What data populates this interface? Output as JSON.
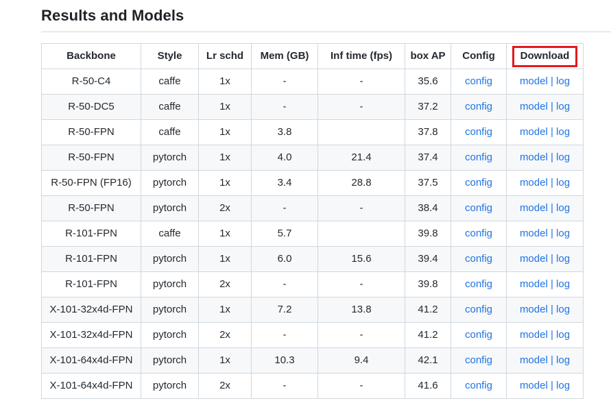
{
  "section": {
    "title": "Results and Models"
  },
  "annotation": {
    "column": "Download",
    "shape": "red-rectangle"
  },
  "colors": {
    "link": "#2074e2",
    "highlight": "#e0191f",
    "stripe": "#f6f8fa",
    "border": "#d0d7de"
  },
  "table": {
    "columns": [
      "Backbone",
      "Style",
      "Lr schd",
      "Mem (GB)",
      "Inf time (fps)",
      "box AP",
      "Config",
      "Download"
    ],
    "links": {
      "config": "config",
      "model": "model",
      "log": "log",
      "separator": "|"
    },
    "rows": [
      {
        "backbone": "R-50-C4",
        "style": "caffe",
        "lr_schd": "1x",
        "mem": "-",
        "inf_time": "-",
        "box_ap": "35.6"
      },
      {
        "backbone": "R-50-DC5",
        "style": "caffe",
        "lr_schd": "1x",
        "mem": "-",
        "inf_time": "-",
        "box_ap": "37.2"
      },
      {
        "backbone": "R-50-FPN",
        "style": "caffe",
        "lr_schd": "1x",
        "mem": "3.8",
        "inf_time": "",
        "box_ap": "37.8"
      },
      {
        "backbone": "R-50-FPN",
        "style": "pytorch",
        "lr_schd": "1x",
        "mem": "4.0",
        "inf_time": "21.4",
        "box_ap": "37.4"
      },
      {
        "backbone": "R-50-FPN (FP16)",
        "style": "pytorch",
        "lr_schd": "1x",
        "mem": "3.4",
        "inf_time": "28.8",
        "box_ap": "37.5"
      },
      {
        "backbone": "R-50-FPN",
        "style": "pytorch",
        "lr_schd": "2x",
        "mem": "-",
        "inf_time": "-",
        "box_ap": "38.4"
      },
      {
        "backbone": "R-101-FPN",
        "style": "caffe",
        "lr_schd": "1x",
        "mem": "5.7",
        "inf_time": "",
        "box_ap": "39.8"
      },
      {
        "backbone": "R-101-FPN",
        "style": "pytorch",
        "lr_schd": "1x",
        "mem": "6.0",
        "inf_time": "15.6",
        "box_ap": "39.4"
      },
      {
        "backbone": "R-101-FPN",
        "style": "pytorch",
        "lr_schd": "2x",
        "mem": "-",
        "inf_time": "-",
        "box_ap": "39.8"
      },
      {
        "backbone": "X-101-32x4d-FPN",
        "style": "pytorch",
        "lr_schd": "1x",
        "mem": "7.2",
        "inf_time": "13.8",
        "box_ap": "41.2"
      },
      {
        "backbone": "X-101-32x4d-FPN",
        "style": "pytorch",
        "lr_schd": "2x",
        "mem": "-",
        "inf_time": "-",
        "box_ap": "41.2"
      },
      {
        "backbone": "X-101-64x4d-FPN",
        "style": "pytorch",
        "lr_schd": "1x",
        "mem": "10.3",
        "inf_time": "9.4",
        "box_ap": "42.1"
      },
      {
        "backbone": "X-101-64x4d-FPN",
        "style": "pytorch",
        "lr_schd": "2x",
        "mem": "-",
        "inf_time": "-",
        "box_ap": "41.6"
      }
    ]
  }
}
